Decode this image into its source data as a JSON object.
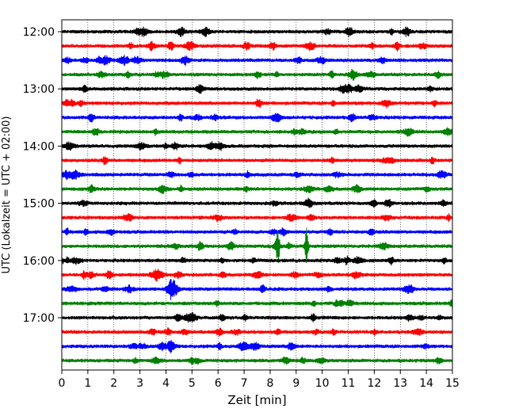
{
  "chart_data": {
    "type": "line",
    "subtype": "helicorder",
    "xlabel": "Zeit  [min]",
    "ylabel": "UTC (Lokalzeit = UTC + 02:00)",
    "xlim": [
      0,
      15
    ],
    "xticks": [
      "0",
      "1",
      "2",
      "3",
      "4",
      "5",
      "6",
      "7",
      "8",
      "9",
      "10",
      "11",
      "12",
      "13",
      "14",
      "15"
    ],
    "y_tick_labels": [
      "12:00",
      "13:00",
      "14:00",
      "15:00",
      "16:00",
      "17:00"
    ],
    "grid": "vertical dotted lines at each minute",
    "trace_colors": [
      "#000000",
      "#ff0000",
      "#0000ff",
      "#008000"
    ],
    "traces": [
      {
        "start": "12:00"
      },
      {
        "start": "12:15"
      },
      {
        "start": "12:30"
      },
      {
        "start": "12:45"
      },
      {
        "start": "13:00"
      },
      {
        "start": "13:15"
      },
      {
        "start": "13:30"
      },
      {
        "start": "13:45"
      },
      {
        "start": "14:00"
      },
      {
        "start": "14:15"
      },
      {
        "start": "14:30"
      },
      {
        "start": "14:45"
      },
      {
        "start": "15:00"
      },
      {
        "start": "15:15"
      },
      {
        "start": "15:30"
      },
      {
        "start": "15:45"
      },
      {
        "start": "16:00"
      },
      {
        "start": "16:15"
      },
      {
        "start": "16:30"
      },
      {
        "start": "16:45"
      },
      {
        "start": "17:00"
      },
      {
        "start": "17:15"
      },
      {
        "start": "17:30"
      },
      {
        "start": "17:45"
      }
    ],
    "events": [
      {
        "trace": 15,
        "minute": 8.3,
        "amplitude": "large"
      },
      {
        "trace": 15,
        "minute": 9.4,
        "amplitude": "very large"
      }
    ]
  }
}
